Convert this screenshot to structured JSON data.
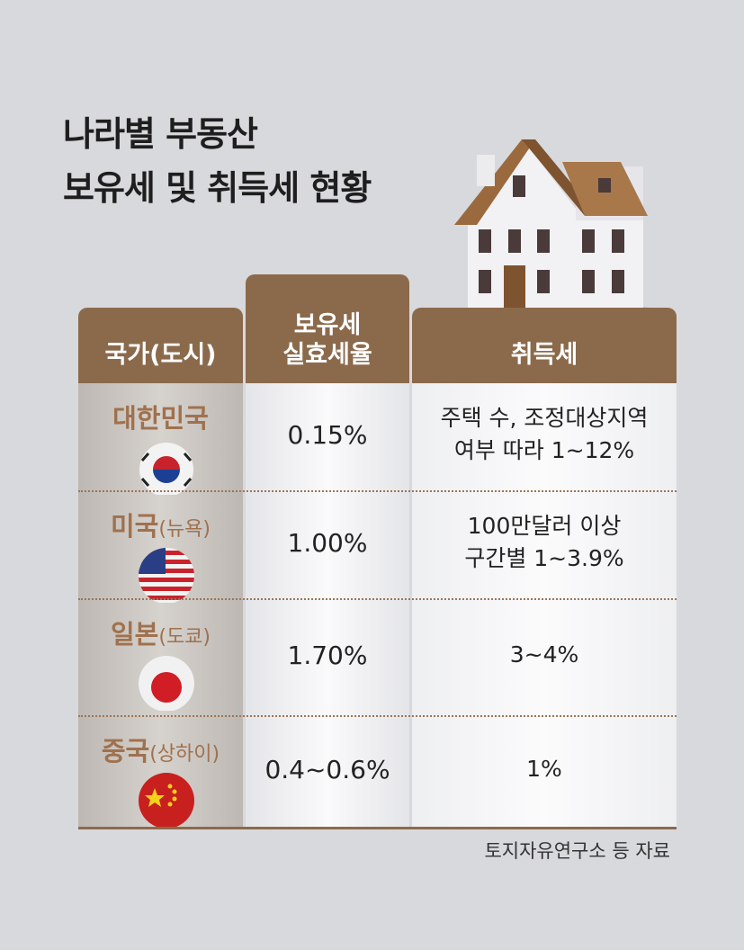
{
  "title": [
    "나라별 부동산",
    "보유세 및 취득세 현황"
  ],
  "table": {
    "headers": [
      "국가(도시)",
      [
        "보유세",
        "실효세율"
      ],
      "취득세"
    ],
    "rows": [
      {
        "country": "대한민국",
        "rate": "0.15%",
        "acquisition": [
          "주택 수, 조정대상지역",
          "여부 따라 1~12%"
        ]
      },
      {
        "country": "미국",
        "city": "(뉴욕)",
        "rate": "1.00%",
        "acquisition": [
          "100만달러 이상",
          "구간별 1~3.9%"
        ]
      },
      {
        "country": "일본",
        "city": "(도쿄)",
        "rate": "1.70%",
        "acquisition": [
          "3~4%"
        ]
      },
      {
        "country": "중국",
        "city": "(상하이)",
        "rate": "0.4~0.6%",
        "acquisition": [
          "1%"
        ]
      }
    ]
  },
  "source": "토지자유연구소 등 자료"
}
